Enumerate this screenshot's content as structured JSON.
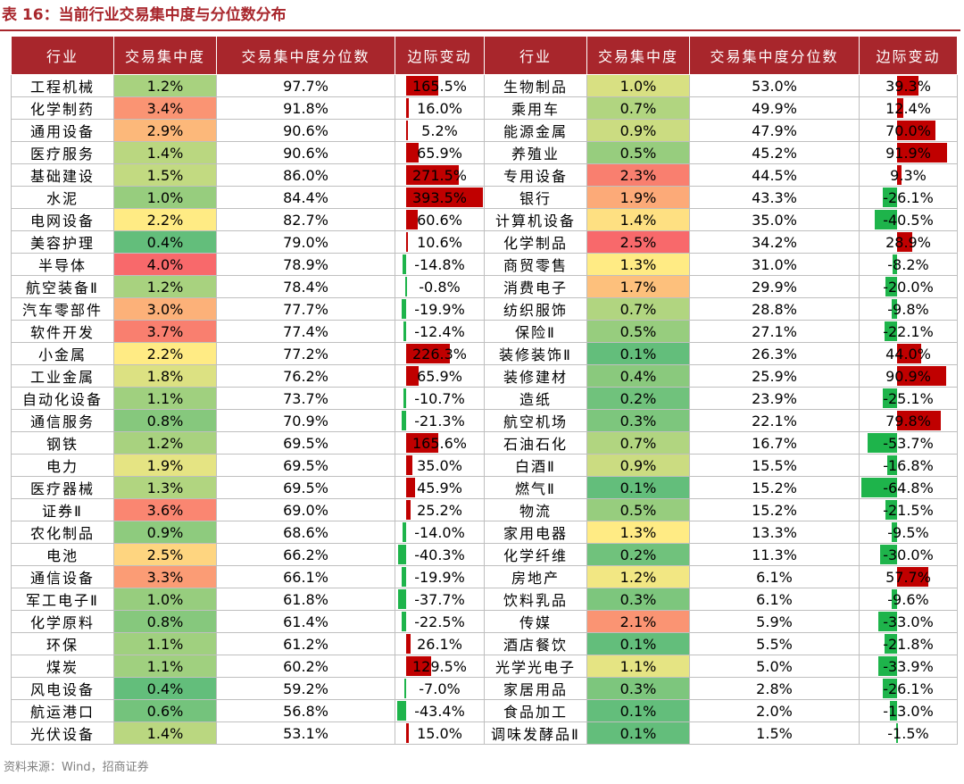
{
  "title": "表 16：当前行业交易集中度与分位数分布",
  "headers": [
    "行业",
    "交易集中度",
    "交易集中度分位数",
    "边际变动",
    "行业",
    "交易集中度",
    "交易集中度分位数",
    "边际变动"
  ],
  "colors": {
    "high_red": "#f8696b",
    "mid_yellow": "#ffeb84",
    "low_green": "#63be7b",
    "bar_positive": "#c00000",
    "bar_negative": "#1eb44b",
    "header": "#a8262c"
  },
  "rows": [
    {
      "left": {
        "industry": "工程机械",
        "conc": "1.2%",
        "pct": "97.7%",
        "chg": "165.5%"
      },
      "right": {
        "industry": "生物制品",
        "conc": "1.0%",
        "pct": "53.0%",
        "chg": "39.3%"
      }
    },
    {
      "left": {
        "industry": "化学制药",
        "conc": "3.4%",
        "pct": "91.8%",
        "chg": "16.0%"
      },
      "right": {
        "industry": "乘用车",
        "conc": "0.7%",
        "pct": "49.9%",
        "chg": "12.4%"
      }
    },
    {
      "left": {
        "industry": "通用设备",
        "conc": "2.9%",
        "pct": "90.6%",
        "chg": "5.2%"
      },
      "right": {
        "industry": "能源金属",
        "conc": "0.9%",
        "pct": "47.9%",
        "chg": "70.0%"
      }
    },
    {
      "left": {
        "industry": "医疗服务",
        "conc": "1.4%",
        "pct": "90.6%",
        "chg": "65.9%"
      },
      "right": {
        "industry": "养殖业",
        "conc": "0.5%",
        "pct": "45.2%",
        "chg": "91.9%"
      }
    },
    {
      "left": {
        "industry": "基础建设",
        "conc": "1.5%",
        "pct": "86.0%",
        "chg": "271.5%"
      },
      "right": {
        "industry": "专用设备",
        "conc": "2.3%",
        "pct": "44.5%",
        "chg": "9.3%"
      }
    },
    {
      "left": {
        "industry": "水泥",
        "conc": "1.0%",
        "pct": "84.4%",
        "chg": "393.5%"
      },
      "right": {
        "industry": "银行",
        "conc": "1.9%",
        "pct": "43.3%",
        "chg": "-26.1%"
      }
    },
    {
      "left": {
        "industry": "电网设备",
        "conc": "2.2%",
        "pct": "82.7%",
        "chg": "60.6%"
      },
      "right": {
        "industry": "计算机设备",
        "conc": "1.4%",
        "pct": "35.0%",
        "chg": "-40.5%"
      }
    },
    {
      "left": {
        "industry": "美容护理",
        "conc": "0.4%",
        "pct": "79.0%",
        "chg": "10.6%"
      },
      "right": {
        "industry": "化学制品",
        "conc": "2.5%",
        "pct": "34.2%",
        "chg": "28.9%"
      }
    },
    {
      "left": {
        "industry": "半导体",
        "conc": "4.0%",
        "pct": "78.9%",
        "chg": "-14.8%"
      },
      "right": {
        "industry": "商贸零售",
        "conc": "1.3%",
        "pct": "31.0%",
        "chg": "-8.2%"
      }
    },
    {
      "left": {
        "industry": "航空装备Ⅱ",
        "conc": "1.2%",
        "pct": "78.4%",
        "chg": "-0.8%"
      },
      "right": {
        "industry": "消费电子",
        "conc": "1.7%",
        "pct": "29.9%",
        "chg": "-20.0%"
      }
    },
    {
      "left": {
        "industry": "汽车零部件",
        "conc": "3.0%",
        "pct": "77.7%",
        "chg": "-19.9%"
      },
      "right": {
        "industry": "纺织服饰",
        "conc": "0.7%",
        "pct": "28.8%",
        "chg": "-9.8%"
      }
    },
    {
      "left": {
        "industry": "软件开发",
        "conc": "3.7%",
        "pct": "77.4%",
        "chg": "-12.4%"
      },
      "right": {
        "industry": "保险Ⅱ",
        "conc": "0.5%",
        "pct": "27.1%",
        "chg": "-22.1%"
      }
    },
    {
      "left": {
        "industry": "小金属",
        "conc": "2.2%",
        "pct": "77.2%",
        "chg": "226.3%"
      },
      "right": {
        "industry": "装修装饰Ⅱ",
        "conc": "0.1%",
        "pct": "26.3%",
        "chg": "44.0%"
      }
    },
    {
      "left": {
        "industry": "工业金属",
        "conc": "1.8%",
        "pct": "76.2%",
        "chg": "65.9%"
      },
      "right": {
        "industry": "装修建材",
        "conc": "0.4%",
        "pct": "25.9%",
        "chg": "90.9%"
      }
    },
    {
      "left": {
        "industry": "自动化设备",
        "conc": "1.1%",
        "pct": "73.7%",
        "chg": "-10.7%"
      },
      "right": {
        "industry": "造纸",
        "conc": "0.2%",
        "pct": "23.9%",
        "chg": "-25.1%"
      }
    },
    {
      "left": {
        "industry": "通信服务",
        "conc": "0.8%",
        "pct": "70.9%",
        "chg": "-21.3%"
      },
      "right": {
        "industry": "航空机场",
        "conc": "0.3%",
        "pct": "22.1%",
        "chg": "79.8%"
      }
    },
    {
      "left": {
        "industry": "钢铁",
        "conc": "1.2%",
        "pct": "69.5%",
        "chg": "165.6%"
      },
      "right": {
        "industry": "石油石化",
        "conc": "0.7%",
        "pct": "16.7%",
        "chg": "-53.7%"
      }
    },
    {
      "left": {
        "industry": "电力",
        "conc": "1.9%",
        "pct": "69.5%",
        "chg": "35.0%"
      },
      "right": {
        "industry": "白酒Ⅱ",
        "conc": "0.9%",
        "pct": "15.5%",
        "chg": "-16.8%"
      }
    },
    {
      "left": {
        "industry": "医疗器械",
        "conc": "1.3%",
        "pct": "69.5%",
        "chg": "45.9%"
      },
      "right": {
        "industry": "燃气Ⅱ",
        "conc": "0.1%",
        "pct": "15.2%",
        "chg": "-64.8%"
      }
    },
    {
      "left": {
        "industry": "证券Ⅱ",
        "conc": "3.6%",
        "pct": "69.0%",
        "chg": "25.2%"
      },
      "right": {
        "industry": "物流",
        "conc": "0.5%",
        "pct": "15.2%",
        "chg": "-21.5%"
      }
    },
    {
      "left": {
        "industry": "农化制品",
        "conc": "0.9%",
        "pct": "68.6%",
        "chg": "-14.0%"
      },
      "right": {
        "industry": "家用电器",
        "conc": "1.3%",
        "pct": "13.3%",
        "chg": "-9.5%"
      }
    },
    {
      "left": {
        "industry": "电池",
        "conc": "2.5%",
        "pct": "66.2%",
        "chg": "-40.3%"
      },
      "right": {
        "industry": "化学纤维",
        "conc": "0.2%",
        "pct": "11.3%",
        "chg": "-30.0%"
      }
    },
    {
      "left": {
        "industry": "通信设备",
        "conc": "3.3%",
        "pct": "66.1%",
        "chg": "-19.9%"
      },
      "right": {
        "industry": "房地产",
        "conc": "1.2%",
        "pct": "6.1%",
        "chg": "57.7%"
      }
    },
    {
      "left": {
        "industry": "军工电子Ⅱ",
        "conc": "1.0%",
        "pct": "61.8%",
        "chg": "-37.7%"
      },
      "right": {
        "industry": "饮料乳品",
        "conc": "0.3%",
        "pct": "6.1%",
        "chg": "-9.6%"
      }
    },
    {
      "left": {
        "industry": "化学原料",
        "conc": "0.8%",
        "pct": "61.4%",
        "chg": "-22.5%"
      },
      "right": {
        "industry": "传媒",
        "conc": "2.1%",
        "pct": "5.9%",
        "chg": "-33.0%"
      }
    },
    {
      "left": {
        "industry": "环保",
        "conc": "1.1%",
        "pct": "61.2%",
        "chg": "26.1%"
      },
      "right": {
        "industry": "酒店餐饮",
        "conc": "0.1%",
        "pct": "5.5%",
        "chg": "-21.8%"
      }
    },
    {
      "left": {
        "industry": "煤炭",
        "conc": "1.1%",
        "pct": "60.2%",
        "chg": "129.5%"
      },
      "right": {
        "industry": "光学光电子",
        "conc": "1.1%",
        "pct": "5.0%",
        "chg": "-33.9%"
      }
    },
    {
      "left": {
        "industry": "风电设备",
        "conc": "0.4%",
        "pct": "59.2%",
        "chg": "-7.0%"
      },
      "right": {
        "industry": "家居用品",
        "conc": "0.3%",
        "pct": "2.8%",
        "chg": "-26.1%"
      }
    },
    {
      "left": {
        "industry": "航运港口",
        "conc": "0.6%",
        "pct": "56.8%",
        "chg": "-43.4%"
      },
      "right": {
        "industry": "食品加工",
        "conc": "0.1%",
        "pct": "2.0%",
        "chg": "-13.0%"
      }
    },
    {
      "left": {
        "industry": "光伏设备",
        "conc": "1.4%",
        "pct": "53.1%",
        "chg": "15.0%"
      },
      "right": {
        "industry": "调味发酵品Ⅱ",
        "conc": "0.1%",
        "pct": "1.5%",
        "chg": "-1.5%"
      }
    }
  ],
  "source": "资料来源：Wind，招商证券"
}
